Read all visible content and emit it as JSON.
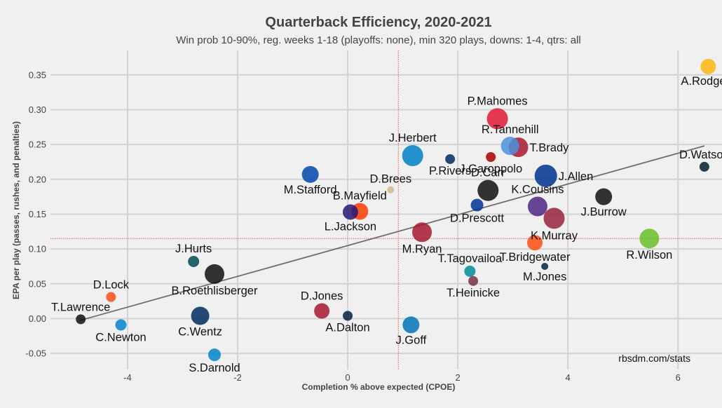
{
  "chart_data": {
    "type": "scatter",
    "title": "Quarterback Efficiency, 2020-2021",
    "subtitle": "Win prob 10-90%, reg. weeks 1-18 (playoffs: none), min 320 plays, downs: 1-4, qtrs: all",
    "xlabel": "Completion % above expected (CPOE)",
    "ylabel": "EPA per play (passes, rushes, and penalties)",
    "xlim": [
      -5.4,
      6.8
    ],
    "ylim": [
      -0.073,
      0.385
    ],
    "x_ticks": [
      -4,
      -2,
      0,
      2,
      4,
      6
    ],
    "x_tick_labels": [
      "-4",
      "-2",
      "0",
      "2",
      "4",
      "6"
    ],
    "y_ticks": [
      -0.05,
      0.0,
      0.05,
      0.1,
      0.15,
      0.2,
      0.25,
      0.3,
      0.35
    ],
    "y_tick_labels": [
      "-0.05",
      "0.00",
      "0.05",
      "0.10",
      "0.15",
      "0.20",
      "0.25",
      "0.30",
      "0.35"
    ],
    "grid": true,
    "mean_x": 0.92,
    "mean_y": 0.115,
    "trend_line": {
      "x": [
        -4.88,
        6.48
      ],
      "y": [
        -0.003,
        0.248
      ]
    },
    "credit": "rbsdm.com/stats",
    "points": [
      {
        "name": "A.Rodgers",
        "x": 6.55,
        "y": 0.362,
        "size": 11,
        "color": "#FFB612",
        "label_pos": "below"
      },
      {
        "name": "P.Mahomes",
        "x": 2.72,
        "y": 0.287,
        "size": 15,
        "color": "#E31837",
        "label_pos": "above"
      },
      {
        "name": "T.Brady",
        "x": 3.1,
        "y": 0.246,
        "size": 14,
        "color": "#A71930",
        "label_pos": "right"
      },
      {
        "name": "R.Tannehill",
        "x": 2.95,
        "y": 0.248,
        "size": 13,
        "color": "#4B92DB",
        "label_pos": "above"
      },
      {
        "name": "D.Watson",
        "x": 6.48,
        "y": 0.218,
        "size": 7,
        "color": "#03202F",
        "label_pos": "above"
      },
      {
        "name": "J.Herbert",
        "x": 1.18,
        "y": 0.234,
        "size": 15,
        "color": "#0080C6",
        "label_pos": "above"
      },
      {
        "name": "P.Rivers",
        "x": 1.86,
        "y": 0.229,
        "size": 7,
        "color": "#002C5F",
        "label_pos": "below"
      },
      {
        "name": "J.Garoppolo",
        "x": 2.6,
        "y": 0.232,
        "size": 7,
        "color": "#AA0000",
        "label_pos": "below"
      },
      {
        "name": "J.Allen",
        "x": 3.6,
        "y": 0.205,
        "size": 16,
        "color": "#00338D",
        "label_pos": "right"
      },
      {
        "name": "M.Stafford",
        "x": -0.68,
        "y": 0.207,
        "size": 12,
        "color": "#0046AD",
        "label_pos": "below"
      },
      {
        "name": "D.Brees",
        "x": 0.78,
        "y": 0.185,
        "size": 5,
        "color": "#D3BC8D",
        "label_pos": "above"
      },
      {
        "name": "D.Carr",
        "x": 2.55,
        "y": 0.184,
        "size": 15,
        "color": "#111111",
        "label_pos": "above"
      },
      {
        "name": "J.Burrow",
        "x": 4.65,
        "y": 0.175,
        "size": 12,
        "color": "#111111",
        "label_pos": "below"
      },
      {
        "name": "K.Cousins",
        "x": 3.45,
        "y": 0.161,
        "size": 14,
        "color": "#4F2683",
        "label_pos": "above"
      },
      {
        "name": "D.Prescott",
        "x": 2.35,
        "y": 0.163,
        "size": 9,
        "color": "#003594",
        "label_pos": "below"
      },
      {
        "name": "B.Mayfield",
        "x": 0.22,
        "y": 0.154,
        "size": 12,
        "color": "#FF3C00",
        "label_pos": "above"
      },
      {
        "name": "L.Jackson",
        "x": 0.05,
        "y": 0.153,
        "size": 11,
        "color": "#241773",
        "label_pos": "below"
      },
      {
        "name": "K.Murray",
        "x": 3.75,
        "y": 0.144,
        "size": 15,
        "color": "#97233F",
        "label_pos": "below"
      },
      {
        "name": "M.Ryan",
        "x": 1.35,
        "y": 0.124,
        "size": 14,
        "color": "#A71930",
        "label_pos": "below"
      },
      {
        "name": "R.Wilson",
        "x": 5.48,
        "y": 0.115,
        "size": 14,
        "color": "#69BE28",
        "label_pos": "below"
      },
      {
        "name": "T.Bridgewater",
        "x": 3.4,
        "y": 0.109,
        "size": 11,
        "color": "#FB4F14",
        "label_pos": "below"
      },
      {
        "name": "J.Hurts",
        "x": -2.8,
        "y": 0.082,
        "size": 8,
        "color": "#004C54",
        "label_pos": "above"
      },
      {
        "name": "M.Jones",
        "x": 3.58,
        "y": 0.075,
        "size": 5,
        "color": "#002244",
        "label_pos": "below"
      },
      {
        "name": "T.Tagovailoa",
        "x": 2.22,
        "y": 0.068,
        "size": 8,
        "color": "#008E97",
        "label_pos": "above"
      },
      {
        "name": "B.Roethlisberger",
        "x": -2.42,
        "y": 0.064,
        "size": 14,
        "color": "#111111",
        "label_pos": "below"
      },
      {
        "name": "T.Heinicke",
        "x": 2.28,
        "y": 0.054,
        "size": 7,
        "color": "#773141",
        "label_pos": "below"
      },
      {
        "name": "D.Lock",
        "x": -4.3,
        "y": 0.031,
        "size": 7,
        "color": "#FB4F14",
        "label_pos": "above"
      },
      {
        "name": "D.Jones",
        "x": -0.47,
        "y": 0.011,
        "size": 11,
        "color": "#A71930",
        "label_pos": "above"
      },
      {
        "name": "C.Wentz",
        "x": -2.68,
        "y": 0.004,
        "size": 13,
        "color": "#002C5F",
        "label_pos": "below"
      },
      {
        "name": "A.Dalton",
        "x": 0.0,
        "y": 0.004,
        "size": 7,
        "color": "#041E42",
        "label_pos": "below"
      },
      {
        "name": "T.Lawrence",
        "x": -4.85,
        "y": -0.001,
        "size": 7,
        "color": "#111111",
        "label_pos": "above"
      },
      {
        "name": "C.Newton",
        "x": -4.12,
        "y": -0.009,
        "size": 8,
        "color": "#0085CA",
        "label_pos": "below"
      },
      {
        "name": "J.Goff",
        "x": 1.15,
        "y": -0.009,
        "size": 12,
        "color": "#0076B6",
        "label_pos": "below"
      },
      {
        "name": "S.Darnold",
        "x": -2.42,
        "y": -0.052,
        "size": 9,
        "color": "#0085CA",
        "label_pos": "below"
      }
    ]
  }
}
